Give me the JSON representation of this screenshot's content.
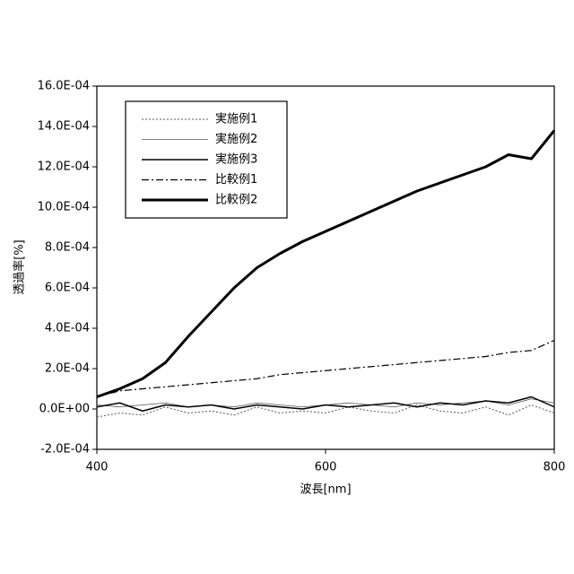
{
  "chart_data": {
    "type": "line",
    "x_label": "波長[nm]",
    "y_label": "透過率[%]",
    "x": [
      400,
      420,
      440,
      460,
      480,
      500,
      520,
      540,
      560,
      580,
      600,
      620,
      640,
      660,
      680,
      700,
      720,
      740,
      760,
      780,
      800
    ],
    "xlim": [
      400,
      800
    ],
    "xticks": [
      400,
      600,
      800
    ],
    "ylim": [
      -0.0002,
      0.0016
    ],
    "yticks": [
      {
        "value": -0.0002,
        "label": "-2.0E-04"
      },
      {
        "value": 0,
        "label": "0.0E+00"
      },
      {
        "value": 0.0002,
        "label": "2.0E-04"
      },
      {
        "value": 0.0004,
        "label": "4.0E-04"
      },
      {
        "value": 0.0006,
        "label": "6.0E-04"
      },
      {
        "value": 0.0008,
        "label": "8.0E-04"
      },
      {
        "value": 0.001,
        "label": "10.0E-04"
      },
      {
        "value": 0.0012,
        "label": "12.0E-04"
      },
      {
        "value": 0.0014,
        "label": "14.0E-04"
      },
      {
        "value": 0.0016,
        "label": "16.0E-04"
      }
    ],
    "series": [
      {
        "name": "実施例1",
        "color": "#555555",
        "style": "dotted",
        "values": [
          -4e-05,
          -2e-05,
          -3e-05,
          1e-05,
          -2e-05,
          -1e-05,
          -3e-05,
          1e-05,
          -2e-05,
          -1e-05,
          -2e-05,
          1e-05,
          -1e-05,
          -2e-05,
          2e-05,
          -1e-05,
          -2e-05,
          1e-05,
          -3e-05,
          2e-05,
          -2e-05
        ]
      },
      {
        "name": "実施例2",
        "color": "#555555",
        "style": "thin",
        "values": [
          2e-05,
          1e-05,
          2e-05,
          3e-05,
          1e-05,
          2e-05,
          1e-05,
          3e-05,
          2e-05,
          1e-05,
          2e-05,
          3e-05,
          2e-05,
          1e-05,
          3e-05,
          2e-05,
          3e-05,
          4e-05,
          2e-05,
          5e-05,
          3e-05
        ]
      },
      {
        "name": "実施例3",
        "color": "#000000",
        "style": "solid",
        "values": [
          1e-05,
          3e-05,
          -1e-05,
          2e-05,
          1e-05,
          2e-05,
          0,
          2e-05,
          1e-05,
          0,
          2e-05,
          1e-05,
          2e-05,
          3e-05,
          1e-05,
          3e-05,
          2e-05,
          4e-05,
          3e-05,
          6e-05,
          1e-05
        ]
      },
      {
        "name": "比較例1",
        "color": "#000000",
        "style": "dashdot",
        "values": [
          6e-05,
          9e-05,
          0.0001,
          0.00011,
          0.00012,
          0.00013,
          0.00014,
          0.00015,
          0.00017,
          0.00018,
          0.00019,
          0.0002,
          0.00021,
          0.00022,
          0.00023,
          0.00024,
          0.00025,
          0.00026,
          0.00028,
          0.00029,
          0.00034
        ]
      },
      {
        "name": "比較例2",
        "color": "#000000",
        "style": "thick",
        "values": [
          6e-05,
          0.0001,
          0.00015,
          0.00023,
          0.00036,
          0.00048,
          0.0006,
          0.0007,
          0.00077,
          0.00083,
          0.00088,
          0.00093,
          0.00098,
          0.00103,
          0.00108,
          0.00112,
          0.00116,
          0.0012,
          0.00126,
          0.00124,
          0.00138
        ]
      }
    ]
  }
}
